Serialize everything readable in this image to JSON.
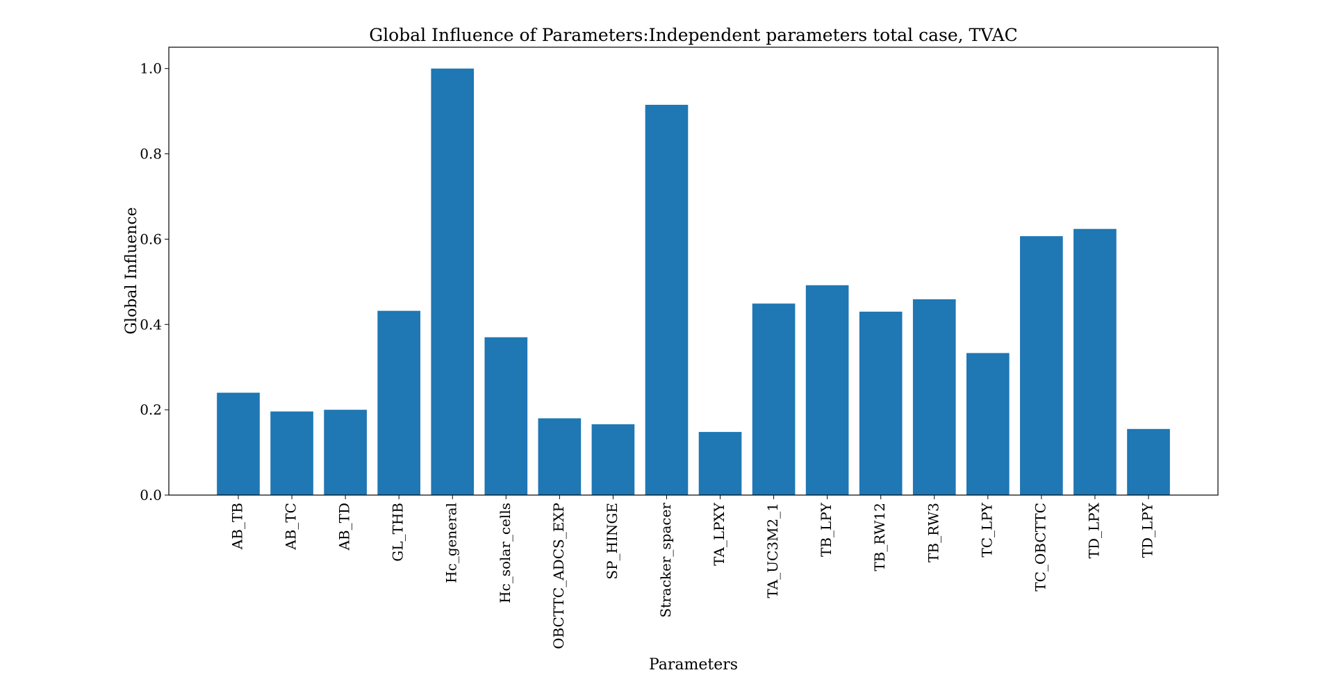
{
  "chart_data": {
    "type": "bar",
    "title": "Global Influence of Parameters:Independent parameters total case, TVAC",
    "xlabel": "Parameters",
    "ylabel": "Global Influence",
    "ylim": [
      0,
      1.05
    ],
    "yticks": [
      0.0,
      0.2,
      0.4,
      0.6,
      0.8,
      1.0
    ],
    "ytick_labels": [
      "0.0",
      "0.2",
      "0.4",
      "0.6",
      "0.8",
      "1.0"
    ],
    "grid": false,
    "bar_color": "#1f77b4",
    "categories": [
      "AB_TB",
      "AB_TC",
      "AB_TD",
      "GL_THB",
      "Hc_general",
      "Hc_solar_cells",
      "OBCTTC_ADCS_EXP",
      "SP_HINGE",
      "Stracker_spacer",
      "TA_LPXY",
      "TA_UC3M2_1",
      "TB_LPY",
      "TB_RW12",
      "TB_RW3",
      "TC_LPY",
      "TC_OBCTTC",
      "TD_LPX",
      "TD_LPY"
    ],
    "values": [
      0.24,
      0.196,
      0.2,
      0.432,
      1.0,
      0.37,
      0.18,
      0.166,
      0.915,
      0.148,
      0.449,
      0.492,
      0.43,
      0.459,
      0.333,
      0.607,
      0.624,
      0.155
    ]
  }
}
